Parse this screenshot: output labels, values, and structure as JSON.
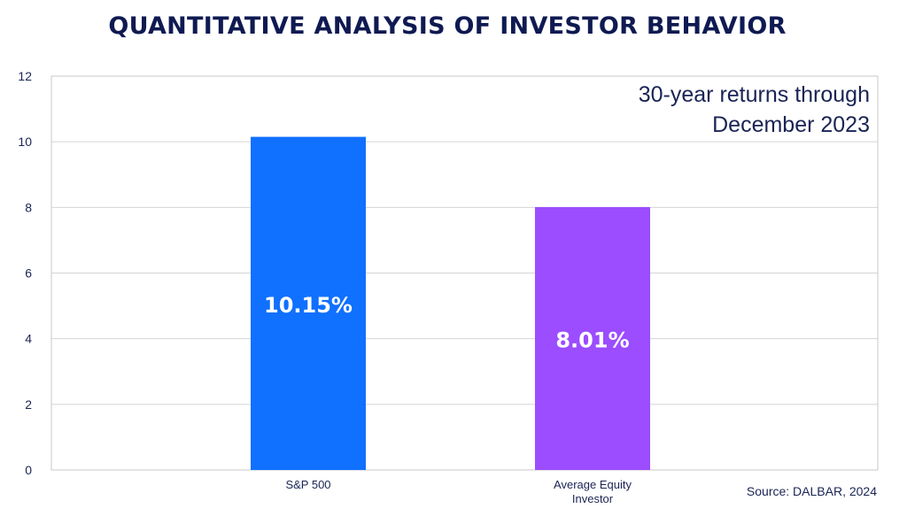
{
  "chart_data": {
    "type": "bar",
    "title": "QUANTITATIVE ANALYSIS OF INVESTOR BEHAVIOR",
    "categories": [
      [
        "S&P 500"
      ],
      [
        "Average Equity",
        "Investor"
      ]
    ],
    "values": [
      10.15,
      8.01
    ],
    "data_labels": [
      "10.15%",
      "8.01%"
    ],
    "bar_colors": [
      "#1070ff",
      "#9b4dff"
    ],
    "ylim": [
      0,
      12
    ],
    "yticks": [
      0,
      2,
      4,
      6,
      8,
      10,
      12
    ],
    "grid": true,
    "annotation": [
      "30-year returns through",
      "December 2023"
    ],
    "source": "Source: DALBAR, 2024"
  }
}
